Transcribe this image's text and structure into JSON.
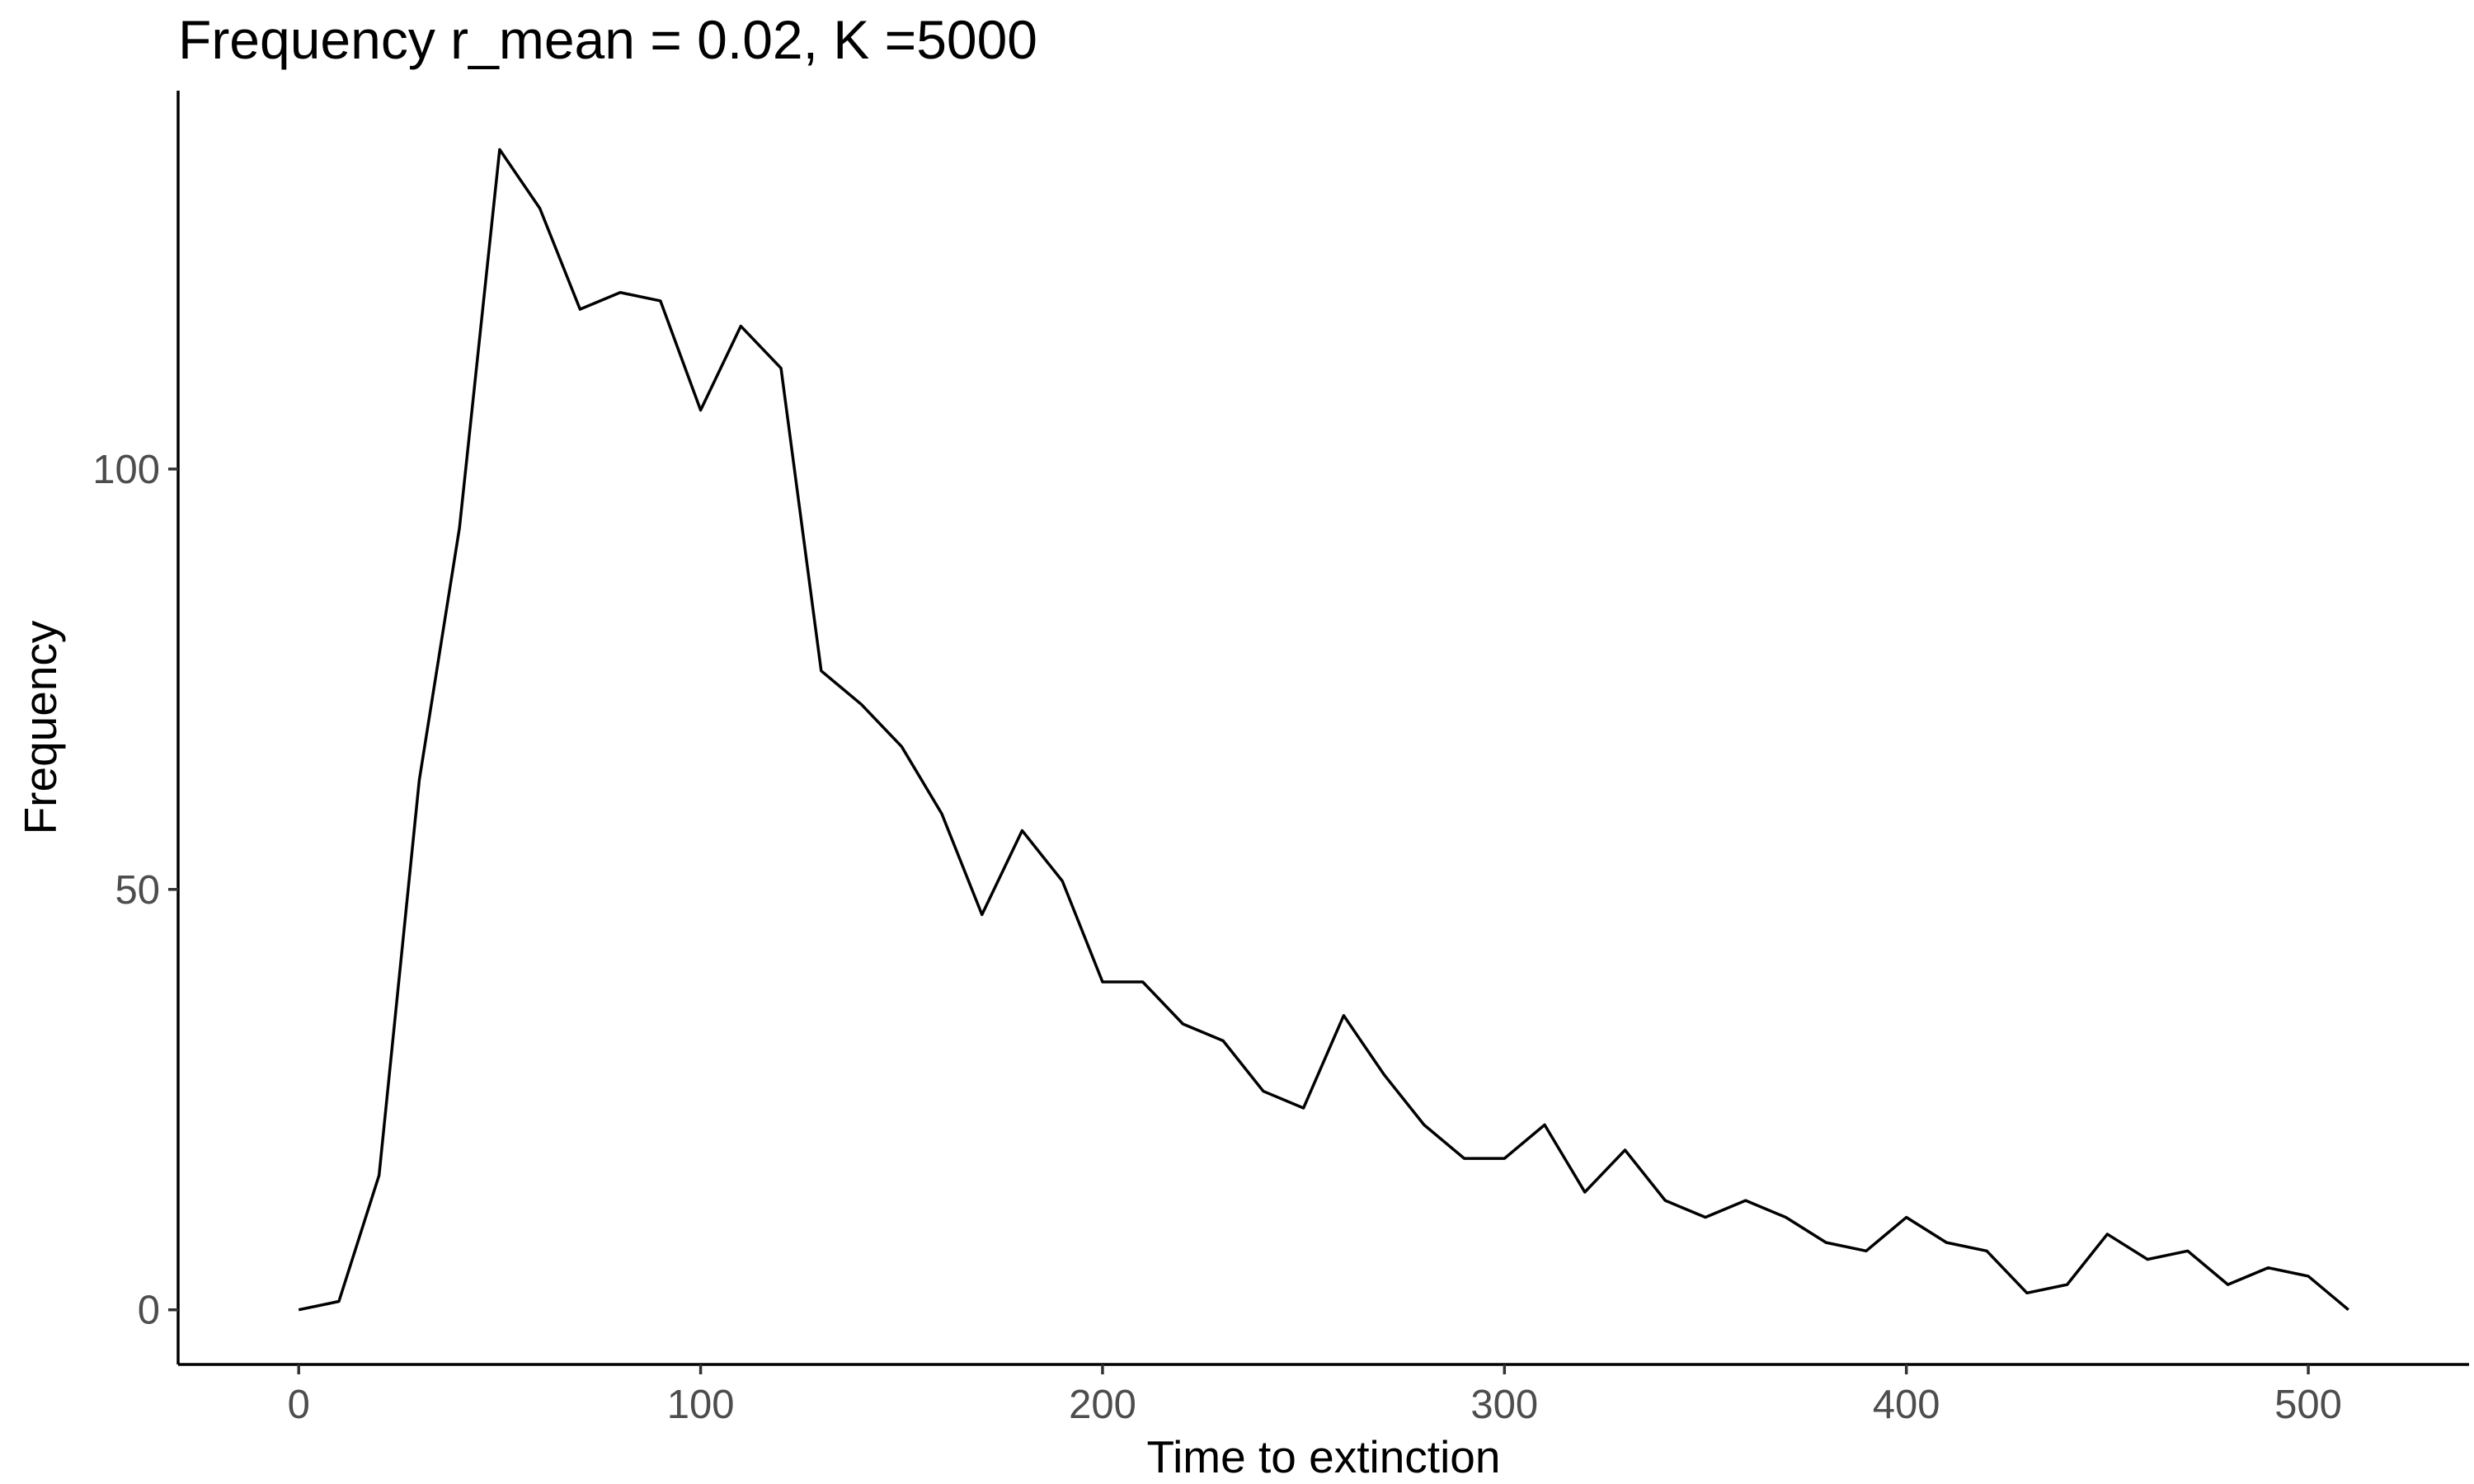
{
  "chart_data": {
    "type": "line",
    "title": "Frequency r_mean = 0.02, K =5000",
    "xlabel": "Time to extinction",
    "ylabel": "Frequency",
    "xlim": [
      -30,
      540
    ],
    "ylim": [
      -6.5,
      145
    ],
    "x_ticks": [
      0,
      100,
      200,
      300,
      400,
      500
    ],
    "y_ticks": [
      0,
      50,
      100
    ],
    "grid": false,
    "legend": "none",
    "line_color": "#000000",
    "x": [
      0,
      10,
      20,
      30,
      40,
      50,
      60,
      70,
      80,
      90,
      100,
      110,
      120,
      130,
      140,
      150,
      160,
      170,
      180,
      190,
      200,
      210,
      220,
      230,
      240,
      250,
      260,
      270,
      280,
      290,
      300,
      310,
      320,
      330,
      340,
      350,
      360,
      370,
      380,
      390,
      400,
      410,
      420,
      430,
      440,
      450,
      460,
      470,
      480,
      490,
      500,
      510
    ],
    "values": [
      0,
      1,
      16,
      63,
      93,
      138,
      131,
      119,
      121,
      120,
      107,
      117,
      112,
      76,
      72,
      67,
      59,
      47,
      57,
      51,
      39,
      39,
      34,
      32,
      26,
      24,
      35,
      28,
      22,
      18,
      18,
      22,
      14,
      19,
      13,
      11,
      13,
      11,
      8,
      7,
      11,
      8,
      7,
      2,
      3,
      9,
      6,
      7,
      3,
      5,
      4,
      0
    ]
  }
}
